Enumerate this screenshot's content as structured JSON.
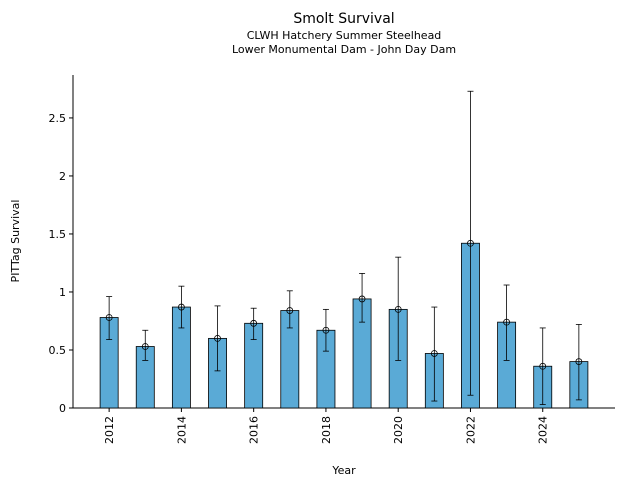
{
  "chart_data": {
    "type": "bar",
    "title": "Smolt Survival",
    "subtitle": [
      "CLWH Hatchery Summer Steelhead",
      "Lower Monumental Dam - John Day Dam"
    ],
    "xlabel": "Year",
    "ylabel": "PITTag Survival",
    "x": [
      2012,
      2013,
      2014,
      2015,
      2016,
      2017,
      2018,
      2019,
      2020,
      2021,
      2022,
      2023,
      2024,
      2025
    ],
    "values": [
      0.78,
      0.53,
      0.87,
      0.6,
      0.73,
      0.84,
      0.67,
      0.94,
      0.85,
      0.47,
      1.42,
      0.74,
      0.36,
      0.4
    ],
    "lower": [
      0.59,
      0.41,
      0.69,
      0.32,
      0.59,
      0.69,
      0.49,
      0.74,
      0.41,
      0.06,
      0.11,
      0.41,
      0.03,
      0.07
    ],
    "upper": [
      0.96,
      0.67,
      1.05,
      0.88,
      0.86,
      1.01,
      0.85,
      1.16,
      1.3,
      0.87,
      2.73,
      1.06,
      0.69,
      0.72
    ],
    "color": "#5aaad6",
    "xlim": [
      2011,
      2026
    ],
    "xticks": [
      2012,
      2014,
      2016,
      2018,
      2020,
      2022,
      2024
    ],
    "ylim": [
      0,
      2.87
    ],
    "yticks": [
      0,
      0.5,
      1,
      1.5,
      2,
      2.5
    ]
  }
}
